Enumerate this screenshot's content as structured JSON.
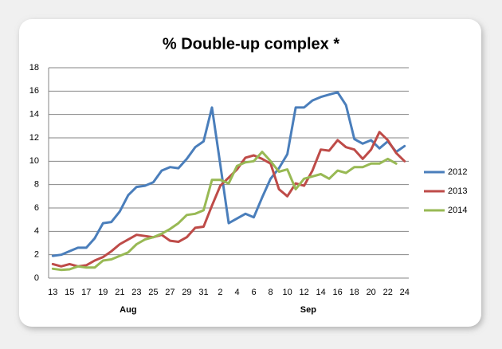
{
  "chart_data": {
    "type": "line",
    "title": "% Double-up complex *",
    "categories": [
      "13",
      null,
      "15",
      null,
      "17",
      null,
      "19",
      null,
      "21",
      null,
      "23",
      null,
      "25",
      null,
      "27",
      null,
      "29",
      null,
      "31",
      null,
      "2",
      null,
      "4",
      null,
      "6",
      null,
      "8",
      null,
      "10",
      null,
      "12",
      null,
      "14",
      null,
      "16",
      null,
      "18",
      null,
      "20",
      null,
      "22",
      null,
      "24"
    ],
    "groups": [
      {
        "label": "Aug",
        "count": 19
      },
      {
        "label": "Sep",
        "count": 24
      }
    ],
    "series": [
      {
        "name": "2012",
        "color": "#4a7ebb",
        "values": [
          1.9,
          2.0,
          2.3,
          2.6,
          2.6,
          3.4,
          4.7,
          4.8,
          5.7,
          7.1,
          7.8,
          7.9,
          8.2,
          9.2,
          9.5,
          9.4,
          10.2,
          11.2,
          11.7,
          14.6,
          9.7,
          4.7,
          5.1,
          5.5,
          5.2,
          6.9,
          8.5,
          9.4,
          10.6,
          14.6,
          14.6,
          15.2,
          15.5,
          15.7,
          15.9,
          14.8,
          11.9,
          11.5,
          11.8,
          11.1,
          11.7,
          10.8,
          11.3
        ]
      },
      {
        "name": "2013",
        "color": "#be4b48",
        "values": [
          1.2,
          1.0,
          1.2,
          1.0,
          1.1,
          1.5,
          1.8,
          2.3,
          2.9,
          3.3,
          3.7,
          3.6,
          3.5,
          3.7,
          3.2,
          3.1,
          3.5,
          4.3,
          4.4,
          6.2,
          7.9,
          8.6,
          9.3,
          10.3,
          10.5,
          10.2,
          9.8,
          7.6,
          7.0,
          8.1,
          7.9,
          9.2,
          11.0,
          10.9,
          11.8,
          11.2,
          11.0,
          10.2,
          11.0,
          12.5,
          11.8,
          10.7,
          10.0
        ]
      },
      {
        "name": "2014",
        "color": "#98b954",
        "values": [
          0.8,
          0.7,
          0.75,
          1.0,
          0.9,
          0.9,
          1.5,
          1.6,
          1.9,
          2.2,
          2.9,
          3.3,
          3.5,
          3.8,
          4.2,
          4.7,
          5.4,
          5.5,
          5.8,
          8.4,
          8.4,
          8.1,
          9.6,
          9.9,
          10.0,
          10.8,
          10.0,
          9.1,
          9.3,
          7.6,
          8.5,
          8.7,
          8.9,
          8.5,
          9.2,
          9.0,
          9.5,
          9.5,
          9.8,
          9.8,
          10.2,
          9.8,
          null
        ]
      }
    ],
    "ylim": [
      0,
      18
    ],
    "yticks": [
      0,
      2,
      4,
      6,
      8,
      10,
      12,
      14,
      16,
      18
    ],
    "grid": true,
    "legend": "right"
  }
}
